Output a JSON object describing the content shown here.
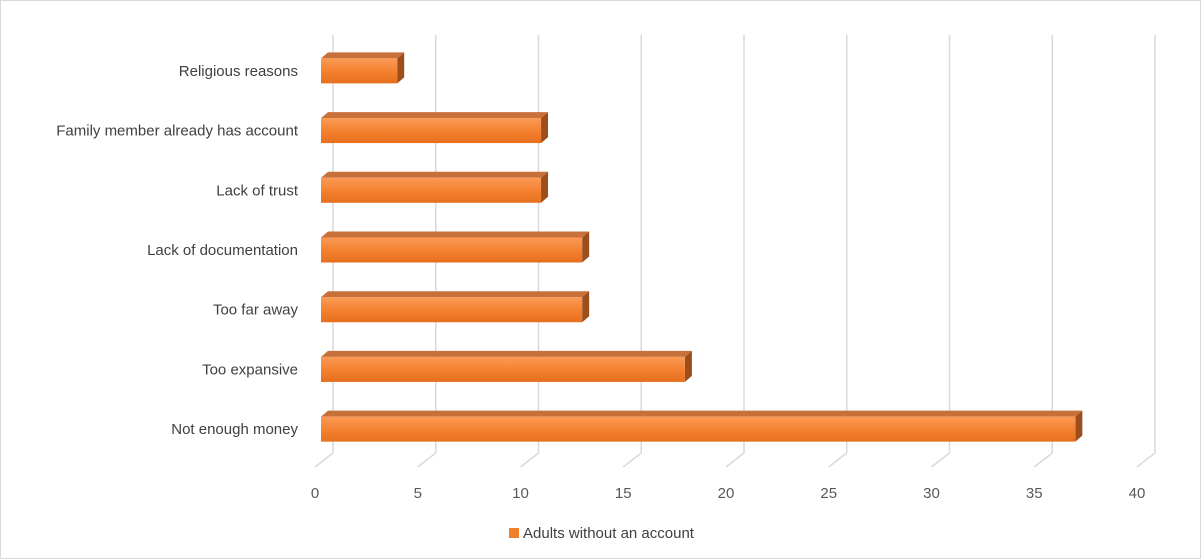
{
  "chart_data": {
    "type": "bar",
    "orientation": "horizontal",
    "style": "3d",
    "categories": [
      "Religious reasons",
      "Family member already has account",
      "Lack of trust",
      "Lack of documentation",
      "Too far away",
      "Too expansive",
      "Not enough money"
    ],
    "series": [
      {
        "name": "Adults without an account",
        "values": [
          4,
          11,
          11,
          13,
          13,
          18,
          37
        ],
        "color": "#f07f2e"
      }
    ],
    "x_ticks": [
      "0",
      "5",
      "10",
      "15",
      "20",
      "25",
      "30",
      "35",
      "40"
    ],
    "xlim": [
      0,
      40
    ],
    "title": "",
    "xlabel": "",
    "ylabel": "",
    "grid": true,
    "legend_position": "bottom"
  }
}
